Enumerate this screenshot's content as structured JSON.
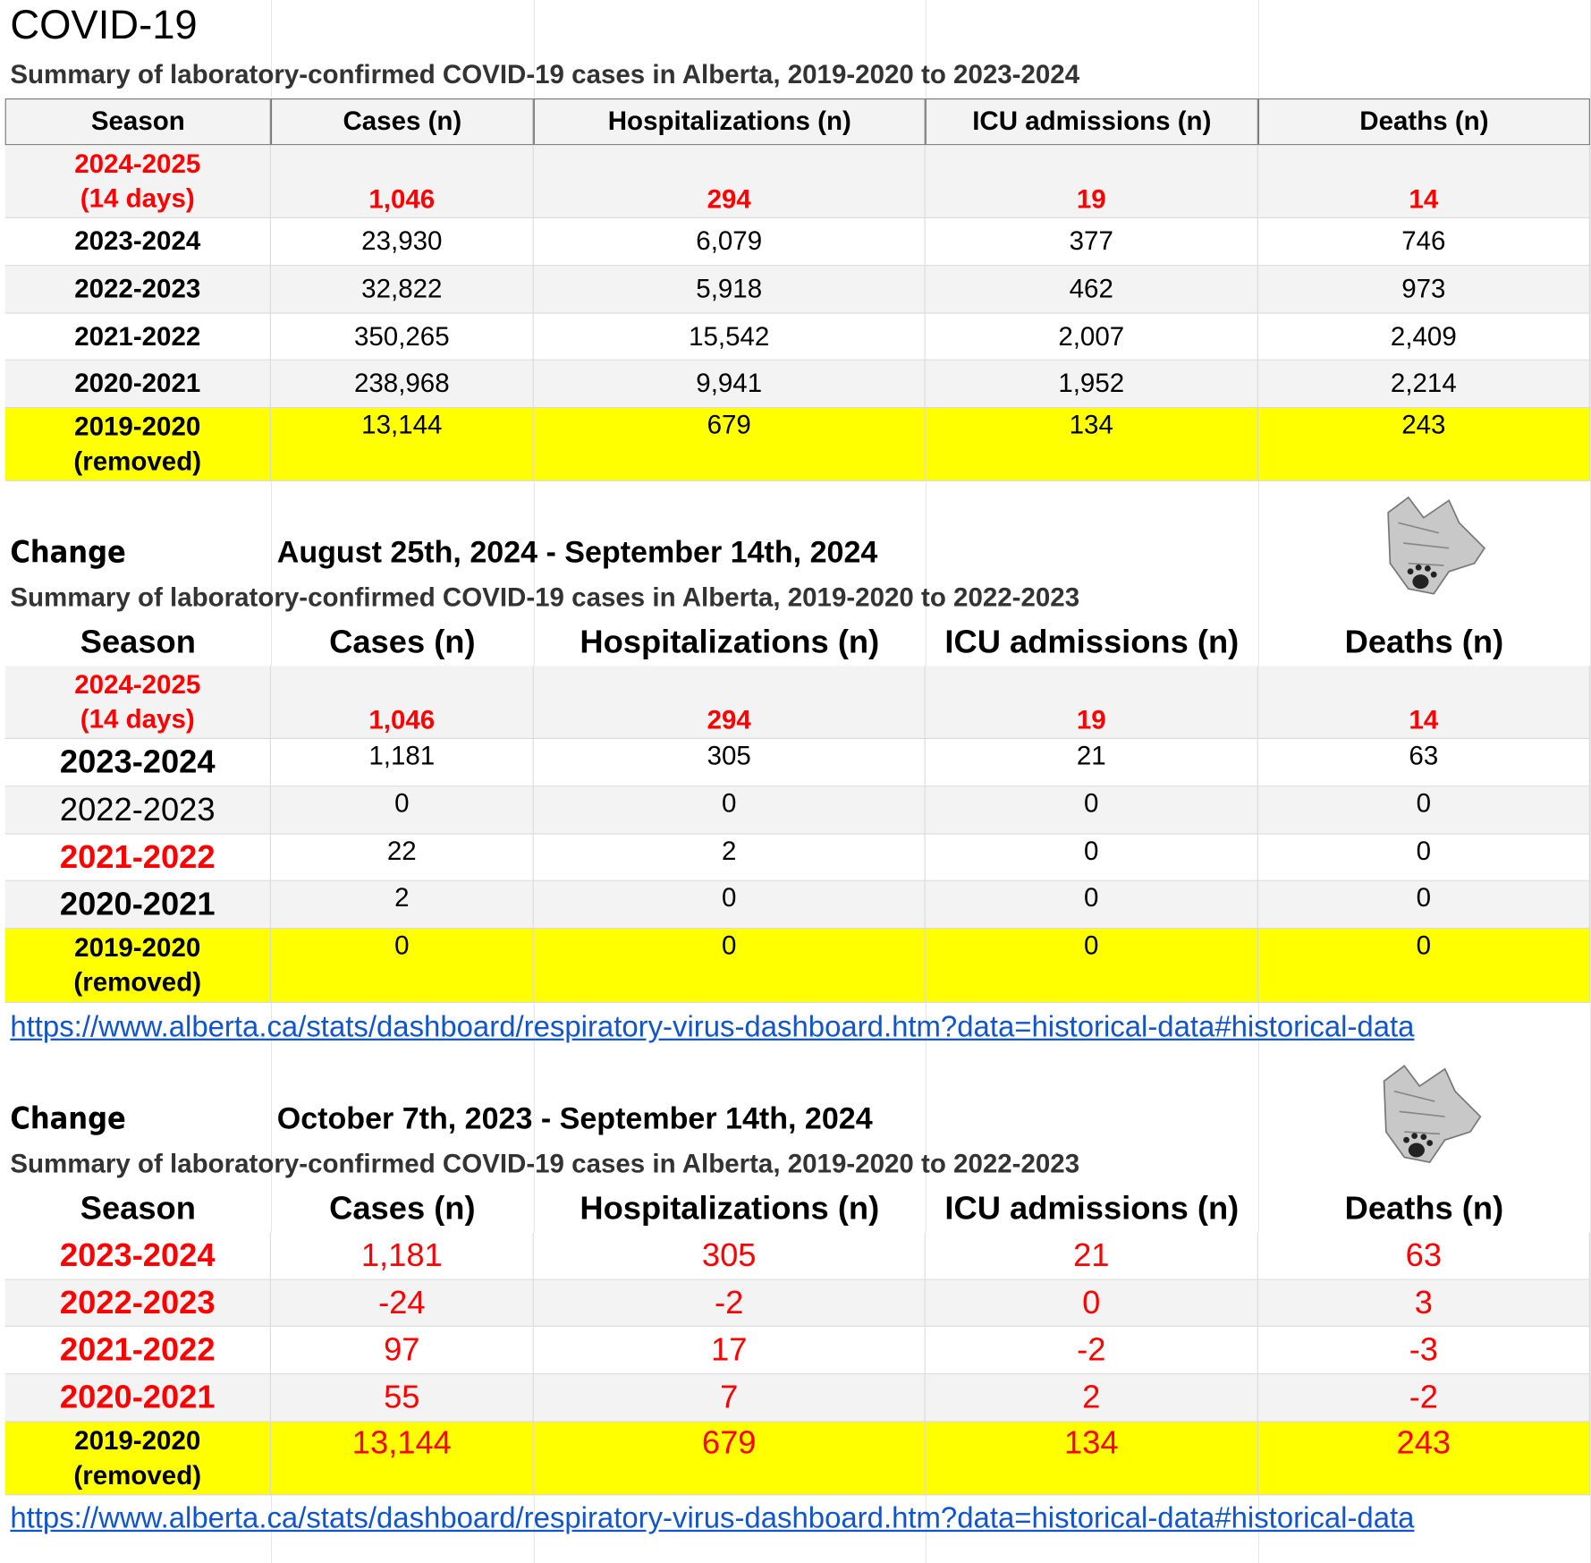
{
  "title": "COVID-19",
  "sections": [
    {
      "subtitle": "Summary of laboratory-confirmed COVID-19 cases in Alberta, 2019-2020 to 2023-2024",
      "header": [
        "Season",
        "Cases (n)",
        "Hospitalizations (n)",
        "ICU admissions (n)",
        "Deaths (n)"
      ],
      "rows": [
        [
          "2024-2025\n(14 days)",
          "1,046",
          "294",
          "19",
          "14"
        ],
        [
          "2023-2024",
          "23,930",
          "6,079",
          "377",
          "746"
        ],
        [
          "2022-2023",
          "32,822",
          "5,918",
          "462",
          "973"
        ],
        [
          "2021-2022",
          "350,265",
          "15,542",
          "2,007",
          "2,409"
        ],
        [
          "2020-2021",
          "238,968",
          "9,941",
          "1,952",
          "2,214"
        ],
        [
          "2019-2020\n(removed)",
          "13,144",
          "679",
          "134",
          "243"
        ]
      ]
    },
    {
      "change_label": "Change",
      "period": "August 25th, 2024 - September 14th, 2024",
      "subtitle": "Summary of laboratory-confirmed COVID-19 cases in Alberta, 2019-2020 to 2022-2023",
      "header": [
        "Season",
        "Cases (n)",
        "Hospitalizations (n)",
        "ICU admissions (n)",
        "Deaths (n)"
      ],
      "rows": [
        [
          "2024-2025\n(14 days)",
          "1,046",
          "294",
          "19",
          "14"
        ],
        [
          "2023-2024",
          "1,181",
          "305",
          "21",
          "63"
        ],
        [
          "2022-2023",
          "0",
          "0",
          "0",
          "0"
        ],
        [
          "2021-2022",
          "22",
          "2",
          "0",
          "0"
        ],
        [
          "2020-2021",
          "2",
          "0",
          "0",
          "0"
        ],
        [
          "2019-2020\n(removed)",
          "0",
          "0",
          "0",
          "0"
        ]
      ],
      "link": "https://www.alberta.ca/stats/dashboard/respiratory-virus-dashboard.htm?data=historical-data#historical-data"
    },
    {
      "change_label": "Change",
      "period": "October 7th, 2023 - September 14th, 2024",
      "subtitle": "Summary of laboratory-confirmed COVID-19 cases in Alberta, 2019-2020 to 2022-2023",
      "header": [
        "Season",
        "Cases (n)",
        "Hospitalizations (n)",
        "ICU admissions (n)",
        "Deaths (n)"
      ],
      "rows": [
        [
          "2023-2024",
          "1,181",
          "305",
          "21",
          "63"
        ],
        [
          "2022-2023",
          "-24",
          "-2",
          "0",
          "3"
        ],
        [
          "2021-2022",
          "97",
          "17",
          "-2",
          "-3"
        ],
        [
          "2020-2021",
          "55",
          "7",
          "2",
          "-2"
        ],
        [
          "2019-2020\n(removed)",
          "13,144",
          "679",
          "134",
          "243"
        ]
      ],
      "link": "https://www.alberta.ca/stats/dashboard/respiratory-virus-dashboard.htm?data=historical-data#historical-data"
    }
  ]
}
